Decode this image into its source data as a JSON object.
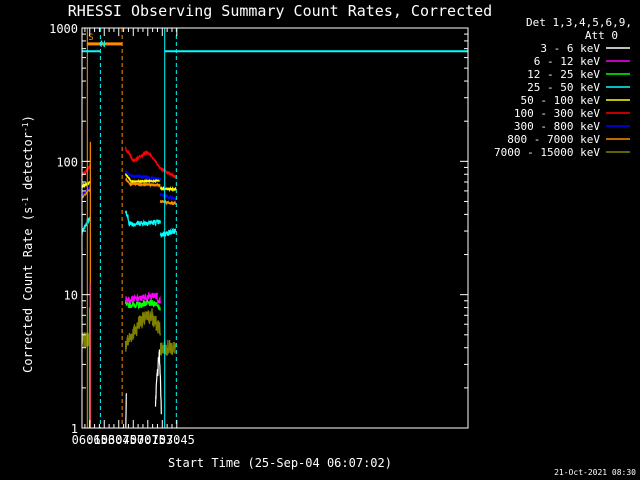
{
  "chart_data": {
    "type": "line",
    "title": "RHESSI Observing Summary Count Rates, Corrected",
    "xlabel": "Start Time (25-Sep-04 06:07:02)",
    "ylabel_main": "Corrected Count Rate (s",
    "ylabel_sup1": "-1",
    "ylabel_mid": " detector",
    "ylabel_sup2": "-1",
    "ylabel_end": ")",
    "ylog": true,
    "ylim": [
      1,
      1000
    ],
    "xlim_min": [
      367,
      766
    ],
    "x_ticks": [
      {
        "m": 375,
        "label": "06:15"
      },
      {
        "m": 390,
        "label": "06:30"
      },
      {
        "m": 405,
        "label": "06:45"
      },
      {
        "m": 420,
        "label": "07:00"
      },
      {
        "m": 435,
        "label": "07:15"
      },
      {
        "m": 450,
        "label": "07:30"
      },
      {
        "m": 465,
        "label": "07:45"
      }
    ],
    "y_ticks": [
      {
        "v": 1,
        "label": "1"
      },
      {
        "v": 10,
        "label": "10"
      },
      {
        "v": 100,
        "label": "100"
      },
      {
        "v": 1000,
        "label": "1000"
      }
    ],
    "legend_header": [
      "Det 1,3,4,5,6,9,",
      "Att 0"
    ],
    "series": [
      {
        "name": "3 - 6 keV",
        "color": "#ffffff"
      },
      {
        "name": "6 - 12 keV",
        "color": "#ff00ff"
      },
      {
        "name": "12 - 25 keV",
        "color": "#00ff00"
      },
      {
        "name": "25 - 50 keV",
        "color": "#00ffff"
      },
      {
        "name": "50 - 100 keV",
        "color": "#ffff00"
      },
      {
        "name": "100 - 300 keV",
        "color": "#ff0000"
      },
      {
        "name": "300 - 800 keV",
        "color": "#0000ff"
      },
      {
        "name": "800 - 7000 keV",
        "color": "#ff8c00"
      },
      {
        "name": "7000 - 15000 keV",
        "color": "#808000"
      }
    ],
    "flags": [
      {
        "label": "S",
        "color": "#ff8c00",
        "start": 372.5,
        "end": 408.5
      },
      {
        "label": "N",
        "color": "#00ffff",
        "start": 367,
        "end": 386,
        "start2": 452.5,
        "end2": 766
      }
    ],
    "footer": "21-Oct-2021 08:30"
  }
}
